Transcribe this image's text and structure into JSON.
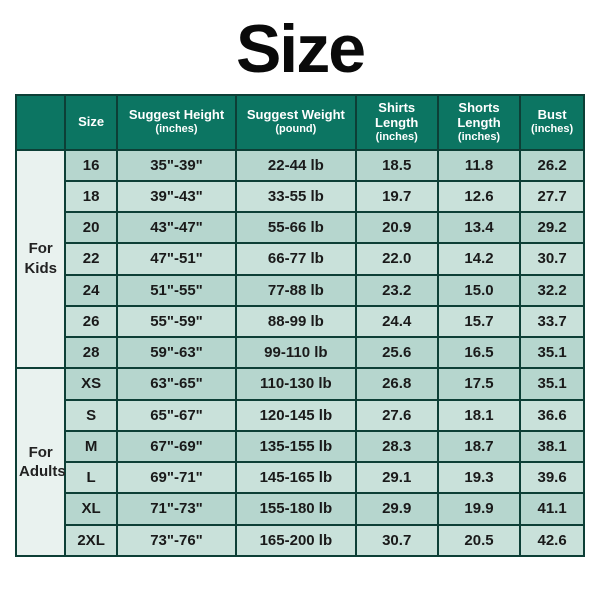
{
  "title": "Size",
  "colors": {
    "header_bg": "#0c7562",
    "header_text": "#ffffff",
    "border": "#0d3f36",
    "row_bg": "#b6d6ce",
    "row_alt_bg": "#c9e1da",
    "group_bg": "#e9f2ef",
    "page_bg": "#ffffff",
    "title_color": "#0a0a0a"
  },
  "table": {
    "type": "table",
    "columns": [
      {
        "key": "group",
        "label": "",
        "sub": ""
      },
      {
        "key": "size",
        "label": "Size",
        "sub": ""
      },
      {
        "key": "height",
        "label": "Suggest Height",
        "sub": "(inches)"
      },
      {
        "key": "weight",
        "label": "Suggest Weight",
        "sub": "(pound)"
      },
      {
        "key": "shirt",
        "label": "Shirts Length",
        "sub": "(inches)"
      },
      {
        "key": "short",
        "label": "Shorts Length",
        "sub": "(inches)"
      },
      {
        "key": "bust",
        "label": "Bust",
        "sub": "(inches)"
      }
    ],
    "groups": [
      {
        "label": "For\nKids",
        "rows": [
          {
            "size": "16",
            "height": "35\"-39\"",
            "weight": "22-44 lb",
            "shirt": "18.5",
            "short": "11.8",
            "bust": "26.2"
          },
          {
            "size": "18",
            "height": "39\"-43\"",
            "weight": "33-55 lb",
            "shirt": "19.7",
            "short": "12.6",
            "bust": "27.7"
          },
          {
            "size": "20",
            "height": "43\"-47\"",
            "weight": "55-66 lb",
            "shirt": "20.9",
            "short": "13.4",
            "bust": "29.2"
          },
          {
            "size": "22",
            "height": "47\"-51\"",
            "weight": "66-77 lb",
            "shirt": "22.0",
            "short": "14.2",
            "bust": "30.7"
          },
          {
            "size": "24",
            "height": "51\"-55\"",
            "weight": "77-88 lb",
            "shirt": "23.2",
            "short": "15.0",
            "bust": "32.2"
          },
          {
            "size": "26",
            "height": "55\"-59\"",
            "weight": "88-99 lb",
            "shirt": "24.4",
            "short": "15.7",
            "bust": "33.7"
          },
          {
            "size": "28",
            "height": "59\"-63\"",
            "weight": "99-110 lb",
            "shirt": "25.6",
            "short": "16.5",
            "bust": "35.1"
          }
        ]
      },
      {
        "label": "For\nAdults",
        "rows": [
          {
            "size": "XS",
            "height": "63\"-65\"",
            "weight": "110-130 lb",
            "shirt": "26.8",
            "short": "17.5",
            "bust": "35.1"
          },
          {
            "size": "S",
            "height": "65\"-67\"",
            "weight": "120-145 lb",
            "shirt": "27.6",
            "short": "18.1",
            "bust": "36.6"
          },
          {
            "size": "M",
            "height": "67\"-69\"",
            "weight": "135-155 lb",
            "shirt": "28.3",
            "short": "18.7",
            "bust": "38.1"
          },
          {
            "size": "L",
            "height": "69\"-71\"",
            "weight": "145-165 lb",
            "shirt": "29.1",
            "short": "19.3",
            "bust": "39.6"
          },
          {
            "size": "XL",
            "height": "71\"-73\"",
            "weight": "155-180 lb",
            "shirt": "29.9",
            "short": "19.9",
            "bust": "41.1"
          },
          {
            "size": "2XL",
            "height": "73\"-76\"",
            "weight": "165-200 lb",
            "shirt": "30.7",
            "short": "20.5",
            "bust": "42.6"
          }
        ]
      }
    ]
  }
}
